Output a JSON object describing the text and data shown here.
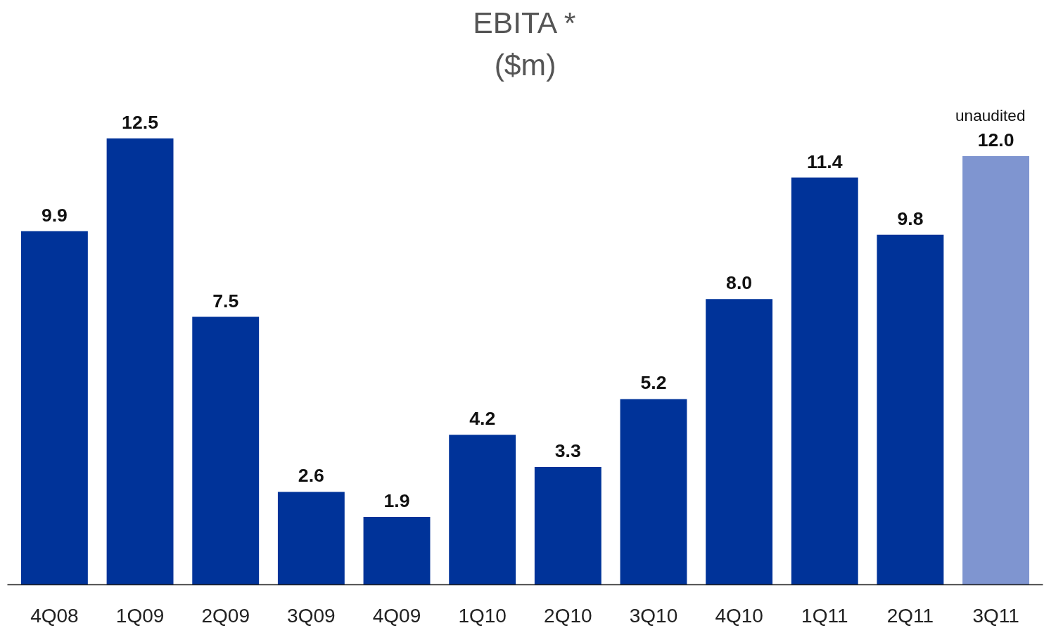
{
  "chart_data": {
    "type": "bar",
    "title": "EBITA *",
    "subtitle": "($m)",
    "categories": [
      "4Q08",
      "1Q09",
      "2Q09",
      "3Q09",
      "4Q09",
      "1Q10",
      "2Q10",
      "3Q10",
      "4Q10",
      "1Q11",
      "2Q11",
      "3Q11"
    ],
    "values": [
      9.9,
      12.5,
      7.5,
      2.6,
      1.9,
      4.2,
      3.3,
      5.2,
      8.0,
      11.4,
      9.8,
      12.0
    ],
    "value_labels": [
      "9.9",
      "12.5",
      "7.5",
      "2.6",
      "1.9",
      "4.2",
      "3.3",
      "5.2",
      "8.0",
      "11.4",
      "9.8",
      "12.0"
    ],
    "colors": [
      "#003399",
      "#003399",
      "#003399",
      "#003399",
      "#003399",
      "#003399",
      "#003399",
      "#003399",
      "#003399",
      "#003399",
      "#003399",
      "#7f95d0"
    ],
    "annotations": [
      "unaudited"
    ],
    "grid": false
  }
}
